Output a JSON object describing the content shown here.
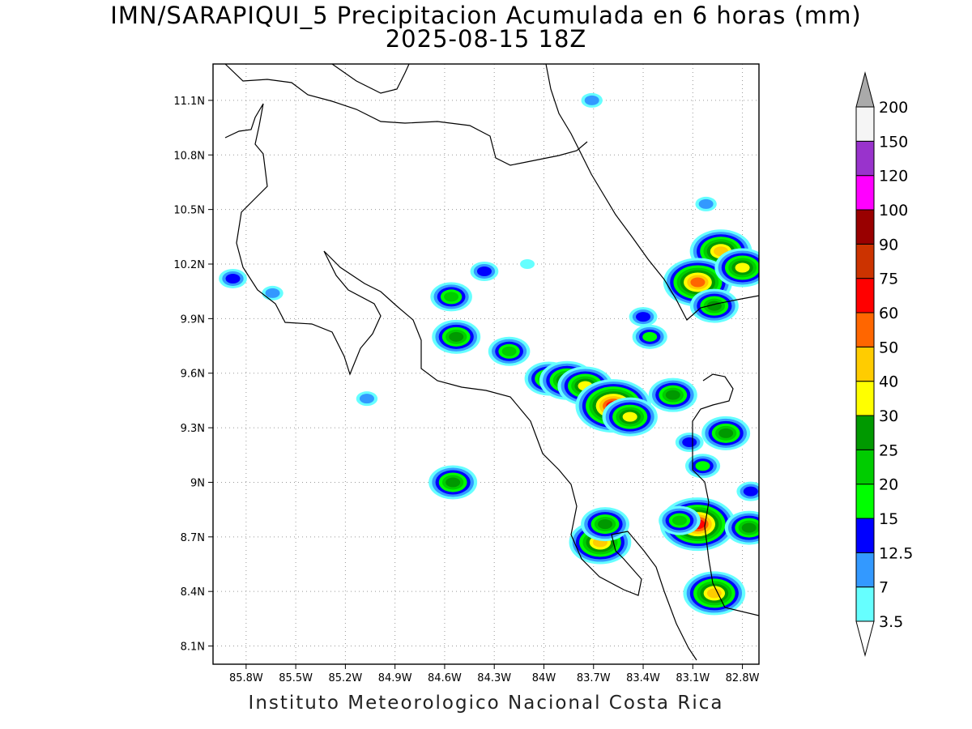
{
  "title": "IMN/SARAPIQUI_5 Precipitacion Acumulada en 6 horas (mm)",
  "subtitle": "2025-08-15 18Z",
  "footer": "Instituto Meteorologico Nacional Costa Rica",
  "map": {
    "lon_range": [
      -86.0,
      -82.7
    ],
    "lat_range": [
      8.0,
      11.3
    ],
    "lon_ticks": [
      {
        "value": -85.8,
        "label": "85.8W"
      },
      {
        "value": -85.5,
        "label": "85.5W"
      },
      {
        "value": -85.2,
        "label": "85.2W"
      },
      {
        "value": -84.9,
        "label": "84.9W"
      },
      {
        "value": -84.6,
        "label": "84.6W"
      },
      {
        "value": -84.3,
        "label": "84.3W"
      },
      {
        "value": -84.0,
        "label": "84W"
      },
      {
        "value": -83.7,
        "label": "83.7W"
      },
      {
        "value": -83.4,
        "label": "83.4W"
      },
      {
        "value": -83.1,
        "label": "83.1W"
      },
      {
        "value": -82.8,
        "label": "82.8W"
      }
    ],
    "lat_ticks": [
      {
        "value": 11.1,
        "label": "11.1N"
      },
      {
        "value": 10.8,
        "label": "10.8N"
      },
      {
        "value": 10.5,
        "label": "10.5N"
      },
      {
        "value": 10.2,
        "label": "10.2N"
      },
      {
        "value": 9.9,
        "label": "9.9N"
      },
      {
        "value": 9.6,
        "label": "9.6N"
      },
      {
        "value": 9.3,
        "label": "9.3N"
      },
      {
        "value": 9.0,
        "label": "9N"
      },
      {
        "value": 8.7,
        "label": "8.7N"
      },
      {
        "value": 8.4,
        "label": "8.4N"
      },
      {
        "value": 8.1,
        "label": "8.1N"
      }
    ],
    "grid": true
  },
  "legend": {
    "colors": [
      "#66ffff",
      "#3399ff",
      "#0000ff",
      "#00ff00",
      "#00cc00",
      "#009900",
      "#ffff00",
      "#ffcc00",
      "#ff6600",
      "#ff0000",
      "#cc3300",
      "#990000",
      "#ff00ff",
      "#9933cc",
      "#f5f5f5"
    ],
    "top_triangle_color": "#aaaaaa",
    "bottom_triangle_color": "#ffffff",
    "labels": [
      "3.5",
      "7",
      "12.5",
      "15",
      "20",
      "25",
      "30",
      "40",
      "50",
      "60",
      "75",
      "90",
      "100",
      "120",
      "150",
      "200"
    ]
  },
  "rain_cells": [
    {
      "lon": -84.36,
      "lat": 10.16,
      "level": 2
    },
    {
      "lon": -84.56,
      "lat": 10.02,
      "level": 4
    },
    {
      "lon": -84.53,
      "lat": 9.8,
      "level": 5
    },
    {
      "lon": -84.21,
      "lat": 9.72,
      "level": 4
    },
    {
      "lon": -83.97,
      "lat": 9.57,
      "level": 5
    },
    {
      "lon": -83.86,
      "lat": 9.56,
      "level": 6
    },
    {
      "lon": -83.75,
      "lat": 9.53,
      "level": 6
    },
    {
      "lon": -83.58,
      "lat": 9.42,
      "level": 9
    },
    {
      "lon": -83.48,
      "lat": 9.36,
      "level": 6
    },
    {
      "lon": -83.36,
      "lat": 9.8,
      "level": 3
    },
    {
      "lon": -83.22,
      "lat": 9.48,
      "level": 5
    },
    {
      "lon": -82.9,
      "lat": 9.27,
      "level": 5
    },
    {
      "lon": -82.93,
      "lat": 10.27,
      "level": 7
    },
    {
      "lon": -83.07,
      "lat": 10.1,
      "level": 8
    },
    {
      "lon": -82.97,
      "lat": 9.97,
      "level": 5
    },
    {
      "lon": -82.8,
      "lat": 10.18,
      "level": 6
    },
    {
      "lon": -84.55,
      "lat": 9.0,
      "level": 5
    },
    {
      "lon": -83.66,
      "lat": 8.67,
      "level": 7
    },
    {
      "lon": -83.63,
      "lat": 8.77,
      "level": 5
    },
    {
      "lon": -83.07,
      "lat": 8.77,
      "level": 9
    },
    {
      "lon": -83.18,
      "lat": 8.79,
      "level": 4
    },
    {
      "lon": -82.97,
      "lat": 8.39,
      "level": 7
    },
    {
      "lon": -82.76,
      "lat": 8.75,
      "level": 5
    },
    {
      "lon": -83.04,
      "lat": 9.09,
      "level": 3
    },
    {
      "lon": -85.88,
      "lat": 10.12,
      "level": 2
    },
    {
      "lon": -83.71,
      "lat": 11.1,
      "level": 1
    },
    {
      "lon": -83.02,
      "lat": 10.53,
      "level": 1
    },
    {
      "lon": -85.64,
      "lat": 10.04,
      "level": 1
    },
    {
      "lon": -84.1,
      "lat": 10.2,
      "level": 0
    },
    {
      "lon": -85.07,
      "lat": 9.46,
      "level": 1
    },
    {
      "lon": -83.4,
      "lat": 9.91,
      "level": 2
    },
    {
      "lon": -83.12,
      "lat": 9.22,
      "level": 2
    },
    {
      "lon": -82.75,
      "lat": 8.95,
      "level": 2
    }
  ]
}
